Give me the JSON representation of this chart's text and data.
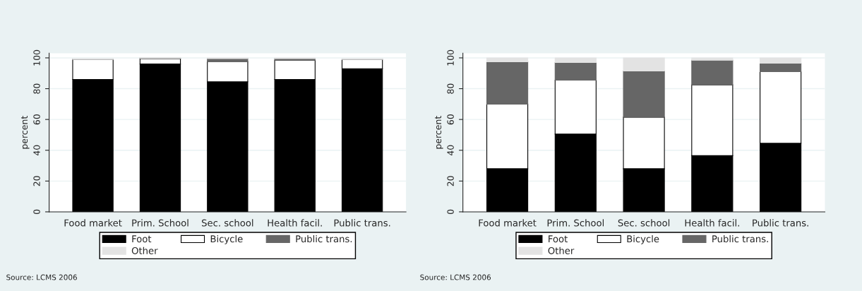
{
  "chart_data": [
    {
      "type": "bar",
      "stacked": true,
      "ylabel": "percent",
      "categories": [
        "Food market",
        "Prim. School",
        "Sec. school",
        "Health facil.",
        "Public trans."
      ],
      "series": [
        {
          "name": "Foot",
          "color": "#000000",
          "values": [
            86,
            96,
            84.5,
            86,
            93
          ]
        },
        {
          "name": "Bicycle",
          "color": "#ffffff",
          "values": [
            13,
            3.5,
            13,
            12.5,
            6
          ]
        },
        {
          "name": "Public trans.",
          "color": "#666666",
          "values": [
            null,
            0.3,
            2,
            1,
            null
          ]
        },
        {
          "name": "Other",
          "color": "#e3e3e3",
          "values": [
            0.5,
            0.2,
            0.5,
            0.5,
            0.5
          ]
        }
      ],
      "ylim": [
        0,
        103
      ],
      "yticks": [
        0,
        20,
        40,
        60,
        80,
        100
      ],
      "grid": "y",
      "legend": "bottom",
      "annotations": [
        "Source: LCMS 2006"
      ]
    },
    {
      "type": "bar",
      "stacked": true,
      "ylabel": "percent",
      "categories": [
        "Food market",
        "Prim. School",
        "Sec. school",
        "Health facil.",
        "Public trans."
      ],
      "series": [
        {
          "name": "Foot",
          "color": "#000000",
          "values": [
            28,
            50.5,
            28,
            36.5,
            44.5
          ]
        },
        {
          "name": "Bicycle",
          "color": "#ffffff",
          "values": [
            42,
            35,
            33.5,
            46,
            46.5
          ]
        },
        {
          "name": "Public trans.",
          "color": "#666666",
          "values": [
            27.5,
            11.5,
            30,
            16,
            5.5
          ]
        },
        {
          "name": "Other",
          "color": "#e3e3e3",
          "values": [
            2.5,
            3,
            8.5,
            1.5,
            3.5
          ]
        }
      ],
      "ylim": [
        0,
        103
      ],
      "yticks": [
        0,
        20,
        40,
        60,
        80,
        100
      ],
      "grid": "y",
      "legend": "bottom",
      "annotations": [
        "Source: LCMS 2006"
      ]
    }
  ]
}
